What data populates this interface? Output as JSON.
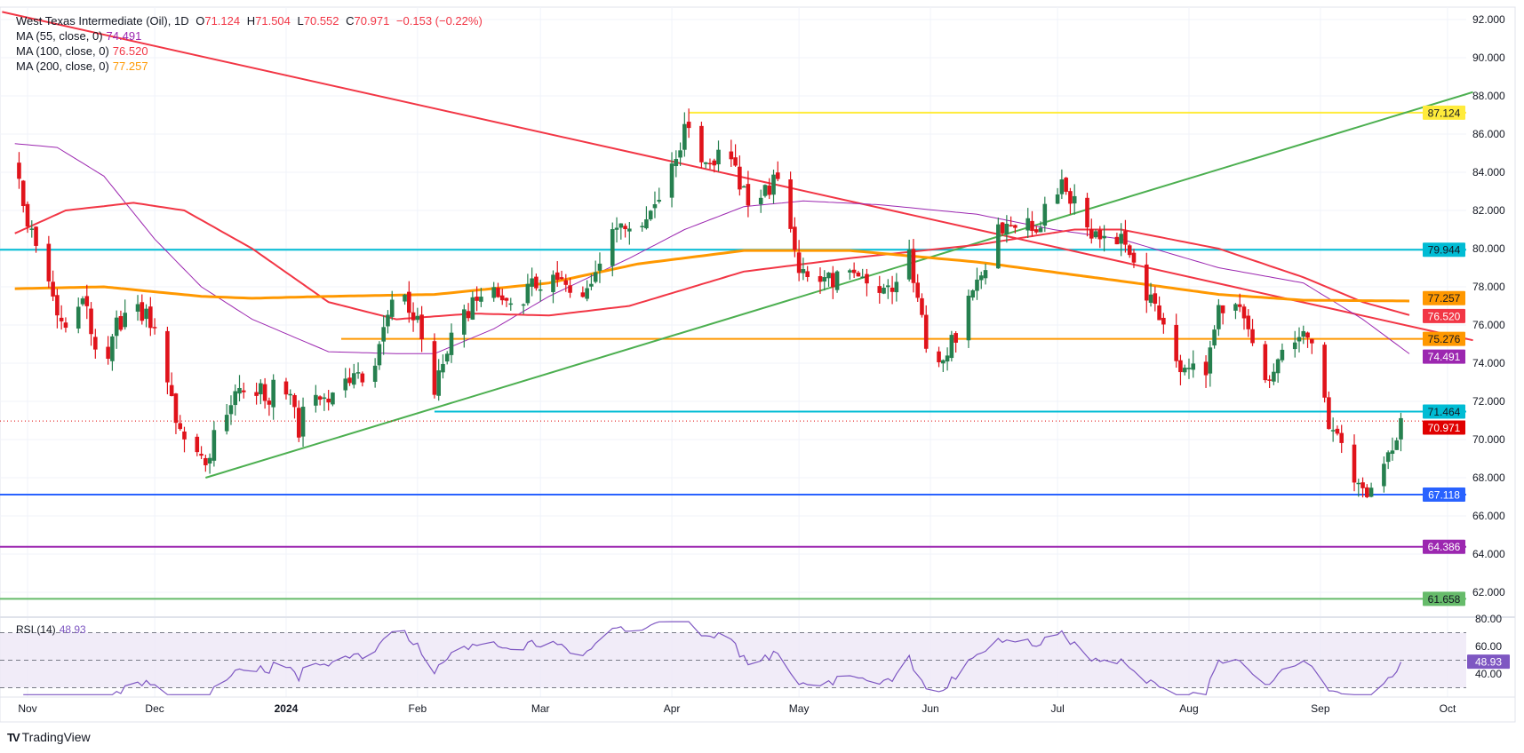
{
  "header": {
    "symbol": "West Texas Intermediate (Oil), 1D",
    "open_label": "O",
    "open": "71.124",
    "high_label": "H",
    "high": "71.504",
    "low_label": "L",
    "low": "70.552",
    "close_label": "C",
    "close": "70.971",
    "change": "−0.153 (−0.22%)"
  },
  "indicators": [
    {
      "label": "MA (55, close, 0)",
      "value": "74.491",
      "color": "#9c27b0"
    },
    {
      "label": "MA (100, close, 0)",
      "value": "76.520",
      "color": "#f23645"
    },
    {
      "label": "MA (200, close, 0)",
      "value": "77.257",
      "color": "#ff9800"
    }
  ],
  "rsi": {
    "label": "RSI (14)",
    "value": "48.93"
  },
  "logo": {
    "text": "TradingView"
  },
  "chart_data": {
    "type": "candlestick",
    "title": "West Texas Intermediate (Oil), 1D",
    "x_unit": "days since 2023-11-01",
    "ylim": [
      60.5,
      92.5
    ],
    "y_ticks": [
      "92.000",
      "90.000",
      "88.000",
      "86.000",
      "84.000",
      "82.000",
      "80.000",
      "78.000",
      "76.000",
      "74.000",
      "72.000",
      "70.000",
      "68.000",
      "66.000",
      "64.000",
      "62.000"
    ],
    "x_ticks": [
      {
        "label": "Nov",
        "day": 0
      },
      {
        "label": "Dec",
        "day": 30
      },
      {
        "label": "2024",
        "day": 61
      },
      {
        "label": "Feb",
        "day": 92
      },
      {
        "label": "Mar",
        "day": 121
      },
      {
        "label": "Apr",
        "day": 152
      },
      {
        "label": "May",
        "day": 182
      },
      {
        "label": "Jun",
        "day": 213
      },
      {
        "label": "Jul",
        "day": 243
      },
      {
        "label": "Aug",
        "day": 274
      },
      {
        "label": "Sep",
        "day": 305
      },
      {
        "label": "Oct",
        "day": 335
      }
    ],
    "last_bar": {
      "open": 71.124,
      "high": 71.504,
      "low": 70.552,
      "close": 70.971
    },
    "close_anchors": [
      [
        -3,
        84.5
      ],
      [
        0,
        81.5
      ],
      [
        7,
        76.5
      ],
      [
        10,
        75.5
      ],
      [
        13,
        77.5
      ],
      [
        18,
        73
      ],
      [
        21,
        76
      ],
      [
        25,
        77
      ],
      [
        30,
        76
      ],
      [
        32,
        74
      ],
      [
        37,
        69.5
      ],
      [
        39,
        69.3
      ],
      [
        42,
        68.5
      ],
      [
        45,
        71.5
      ],
      [
        49,
        72
      ],
      [
        53,
        73
      ],
      [
        57,
        72
      ],
      [
        59,
        74
      ],
      [
        64,
        70.5
      ],
      [
        66,
        72.5
      ],
      [
        71,
        72
      ],
      [
        74,
        73.5
      ],
      [
        78,
        73
      ],
      [
        82,
        74
      ],
      [
        87,
        78
      ],
      [
        89,
        77.5
      ],
      [
        92,
        76
      ],
      [
        96,
        72.5
      ],
      [
        100,
        75.5
      ],
      [
        105,
        77
      ],
      [
        110,
        77.5
      ],
      [
        114,
        77
      ],
      [
        119,
        78
      ],
      [
        123,
        78.5
      ],
      [
        127,
        78
      ],
      [
        132,
        77.5
      ],
      [
        136,
        80.5
      ],
      [
        140,
        81.5
      ],
      [
        146,
        81.5
      ],
      [
        153,
        85
      ],
      [
        156,
        86.5
      ],
      [
        160,
        84.5
      ],
      [
        164,
        85
      ],
      [
        168,
        83.5
      ],
      [
        170,
        82
      ],
      [
        176,
        83.5
      ],
      [
        179,
        82.5
      ],
      [
        182,
        79
      ],
      [
        185,
        78
      ],
      [
        189,
        78.5
      ],
      [
        194,
        78.5
      ],
      [
        199,
        78
      ],
      [
        202,
        77.5
      ],
      [
        208,
        79.5
      ],
      [
        211,
        77
      ],
      [
        213,
        73.5
      ],
      [
        217,
        74.5
      ],
      [
        220,
        76
      ],
      [
        224,
        78
      ],
      [
        227,
        79.5
      ],
      [
        229,
        81
      ],
      [
        234,
        81.5
      ],
      [
        239,
        81
      ],
      [
        242,
        83.5
      ],
      [
        247,
        82.5
      ],
      [
        251,
        81
      ],
      [
        256,
        80.5
      ],
      [
        260,
        80
      ],
      [
        263,
        78
      ],
      [
        266,
        77
      ],
      [
        272,
        74
      ],
      [
        275,
        74
      ],
      [
        277,
        73
      ],
      [
        281,
        76.5
      ],
      [
        284,
        77
      ],
      [
        288,
        76
      ],
      [
        292,
        73
      ],
      [
        298,
        75.5
      ],
      [
        303,
        75
      ],
      [
        304,
        74
      ],
      [
        308,
        70
      ],
      [
        311,
        69.5
      ],
      [
        314,
        67.5
      ],
      [
        316,
        66.5
      ],
      [
        318,
        68.8
      ],
      [
        322,
        69.5
      ],
      [
        324,
        71.3
      ],
      [
        326,
        70.971
      ]
    ],
    "moving_averages": [
      {
        "name": "MA 55",
        "color": "#9c27b0",
        "last": "74.491",
        "anchors": [
          [
            -3,
            85.5
          ],
          [
            7,
            85.3
          ],
          [
            18,
            83.8
          ],
          [
            30,
            80.5
          ],
          [
            41,
            78
          ],
          [
            53,
            76.3
          ],
          [
            71,
            74.6
          ],
          [
            87,
            74.5
          ],
          [
            96,
            74.5
          ],
          [
            110,
            75.8
          ],
          [
            123,
            77.5
          ],
          [
            142,
            79.5
          ],
          [
            155,
            81
          ],
          [
            169,
            82.2
          ],
          [
            183,
            82.5
          ],
          [
            201,
            82.3
          ],
          [
            224,
            81.8
          ],
          [
            242,
            81
          ],
          [
            258,
            80.5
          ],
          [
            281,
            79
          ],
          [
            301,
            78.2
          ],
          [
            315,
            76.3
          ],
          [
            326,
            74.491
          ]
        ]
      },
      {
        "name": "MA 100",
        "color": "#f23645",
        "last": "76.520",
        "anchors": [
          [
            -3,
            80.8
          ],
          [
            9,
            82
          ],
          [
            25,
            82.4
          ],
          [
            37,
            82
          ],
          [
            53,
            80
          ],
          [
            71,
            77.2
          ],
          [
            87,
            76.3
          ],
          [
            105,
            76.6
          ],
          [
            123,
            76.5
          ],
          [
            142,
            77
          ],
          [
            169,
            78.8
          ],
          [
            194,
            79.5
          ],
          [
            224,
            80.2
          ],
          [
            247,
            81
          ],
          [
            258,
            81
          ],
          [
            281,
            80
          ],
          [
            301,
            78.5
          ],
          [
            315,
            77.2
          ],
          [
            326,
            76.52
          ]
        ]
      },
      {
        "name": "MA 200",
        "color": "#ff9800",
        "last": "77.257",
        "anchors": [
          [
            -3,
            77.9
          ],
          [
            18,
            78
          ],
          [
            41,
            77.5
          ],
          [
            53,
            77.4
          ],
          [
            71,
            77.5
          ],
          [
            96,
            77.6
          ],
          [
            123,
            78.2
          ],
          [
            144,
            79.2
          ],
          [
            169,
            79.9
          ],
          [
            194,
            79.9
          ],
          [
            224,
            79.3
          ],
          [
            258,
            78.3
          ],
          [
            281,
            77.6
          ],
          [
            301,
            77.3
          ],
          [
            326,
            77.257
          ]
        ]
      }
    ],
    "horizontal_levels": [
      {
        "value": "87.124",
        "price": 87.124,
        "from_day": 156,
        "color": "#ffeb3b",
        "text_color": "#131722"
      },
      {
        "value": "79.944",
        "price": 79.944,
        "from_day": -10,
        "color": "#00bcd4",
        "text_color": "#131722"
      },
      {
        "value": "75.276",
        "price": 75.276,
        "from_day": 74,
        "color": "#ff9800",
        "text_color": "#131722"
      },
      {
        "value": "71.464",
        "price": 71.464,
        "from_day": 96,
        "color": "#00bcd4",
        "text_color": "#131722"
      },
      {
        "value": "67.118",
        "price": 67.118,
        "from_day": -10,
        "color": "#2962ff",
        "text_color": "#ffffff"
      },
      {
        "value": "64.386",
        "price": 64.386,
        "from_day": -10,
        "color": "#9c27b0",
        "text_color": "#ffffff"
      },
      {
        "value": "61.658",
        "price": 61.658,
        "from_day": -10,
        "color": "#66bb6a",
        "text_color": "#131722"
      }
    ],
    "trendlines": [
      {
        "name": "descending-resistance",
        "color": "#f23645",
        "from": [
          -6,
          92.4
        ],
        "to": [
          341,
          75.2
        ]
      },
      {
        "name": "ascending-support",
        "color": "#4caf50",
        "from": [
          42,
          68.0
        ],
        "to": [
          341,
          88.2
        ]
      }
    ],
    "current_price": {
      "value": "70.971",
      "price": 70.971,
      "color": "#e00000"
    },
    "rsi_ticks": [
      "80.00",
      "60.00",
      "40.00"
    ],
    "rsi_bands": [
      70,
      50,
      30
    ],
    "colors": {
      "up": "#26804f",
      "down": "#e0131b",
      "rsi_line": "#7e57c2",
      "rsi_fill": "#ede7f6"
    }
  }
}
